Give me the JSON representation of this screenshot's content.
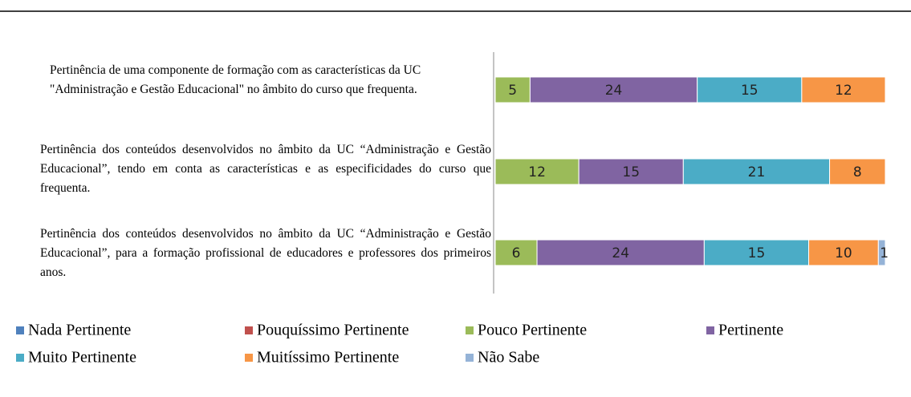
{
  "chart_data": {
    "type": "stacked_bar_100",
    "categories": [
      "Pertinência de uma componente de formação com as características da UC \"Administração e Gestão Educacional\" no âmbito do curso que frequenta.",
      "Pertinência dos conteúdos desenvolvidos no âmbito da UC “Administração e Gestão Educacional”, tendo em conta as características e as especificidades do curso que frequenta.",
      "Pertinência dos conteúdos desenvolvidos no âmbito da UC “Administração e Gestão Educacional”, para a formação profissional de educadores e professores dos primeiros anos."
    ],
    "series": [
      {
        "name": "Nada Pertinente",
        "color": "#4f81bd",
        "values": [
          0,
          0,
          0
        ]
      },
      {
        "name": "Pouquíssimo Pertinente",
        "color": "#c0504d",
        "values": [
          0,
          0,
          0
        ]
      },
      {
        "name": "Pouco Pertinente",
        "color": "#9bbb59",
        "values": [
          5,
          12,
          6
        ]
      },
      {
        "name": "Pertinente",
        "color": "#8064a2",
        "values": [
          24,
          15,
          24
        ]
      },
      {
        "name": "Muito Pertinente",
        "color": "#4bacc6",
        "values": [
          15,
          21,
          15
        ]
      },
      {
        "name": "Muitíssimo Pertinente",
        "color": "#f79646",
        "values": [
          12,
          8,
          10
        ]
      },
      {
        "name": "Não Sabe",
        "color": "#95b3d7",
        "values": [
          0,
          0,
          1
        ]
      }
    ],
    "legend": "bottom"
  }
}
